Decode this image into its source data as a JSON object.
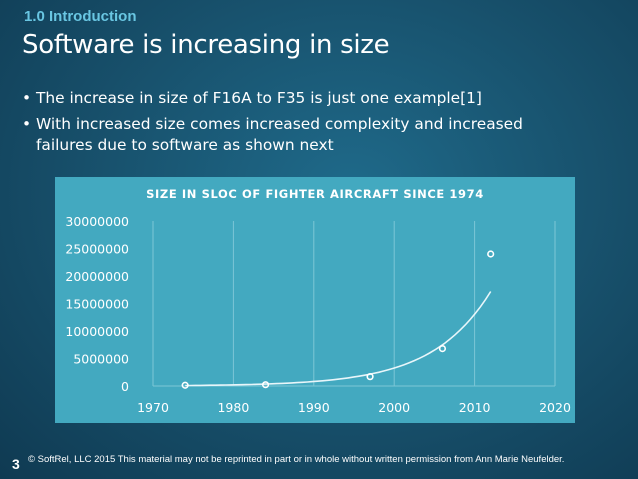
{
  "slide": {
    "section_label": "1.0 Introduction",
    "title": "Software is increasing in size",
    "bullets": [
      "The increase in size of F16A to F35 is just one example[1]",
      "With increased size comes increased complexity and increased failures due to software as shown next"
    ],
    "bullet_glyph": "•",
    "footer": "© SoftRel, LLC 2015 This material may not be reprinted in part or in whole without written permission from Ann Marie Neufelder.",
    "page_number": "3"
  },
  "chart_data": {
    "type": "scatter",
    "title": "SIZE IN SLOC OF FIGHTER AIRCRAFT SINCE 1974",
    "xlabel": "",
    "ylabel": "",
    "xlim": [
      1970,
      2020
    ],
    "ylim": [
      0,
      30000000
    ],
    "x_ticks": [
      "1970",
      "1980",
      "1990",
      "2000",
      "2010",
      "2020"
    ],
    "y_ticks": [
      "0",
      "5000000",
      "10000000",
      "15000000",
      "20000000",
      "25000000",
      "30000000"
    ],
    "grid": "vertical",
    "trendline": "exponential",
    "points": [
      {
        "x": 1974,
        "y": 135000
      },
      {
        "x": 1984,
        "y": 236000
      },
      {
        "x": 1997,
        "y": 1700000
      },
      {
        "x": 2006,
        "y": 6800000
      },
      {
        "x": 2012,
        "y": 24000000
      }
    ],
    "colors": {
      "background": "#43a9c0",
      "marker": "#ffffff",
      "trend": "#e8f6fa",
      "grid": "#7cc6d6"
    }
  }
}
